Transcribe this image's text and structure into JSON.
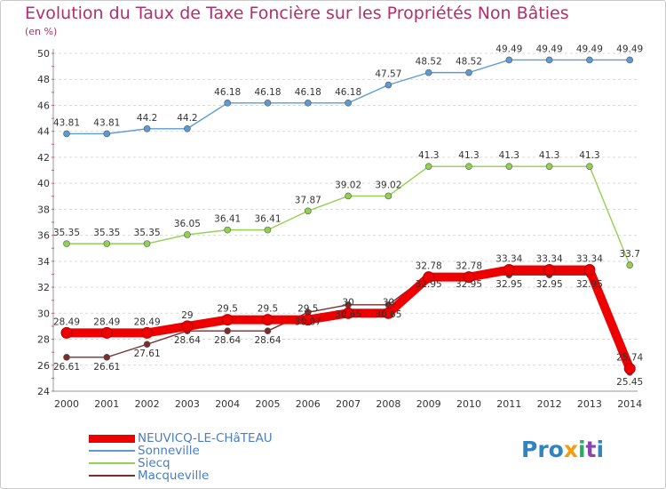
{
  "title": "Evolution du Taux de Taxe Foncière sur les Propriétés Non Bâties",
  "unit": "(en %)",
  "brand": "Proxiti",
  "chart_data": {
    "type": "line",
    "title": "Evolution du Taux de Taxe Foncière sur les Propriétés Non Bâties",
    "ylabel": "(en %)",
    "xlabel": "",
    "x": [
      "2000",
      "2001",
      "2002",
      "2003",
      "2004",
      "2005",
      "2006",
      "2007",
      "2008",
      "2009",
      "2010",
      "2011",
      "2012",
      "2013",
      "2014"
    ],
    "ylim": [
      24,
      50
    ],
    "yticks": [
      "24",
      "26",
      "28",
      "30",
      "32",
      "34",
      "36",
      "38",
      "40",
      "42",
      "44",
      "46",
      "48",
      "50"
    ],
    "grid": "dashed horizontal",
    "legend_placement": "bottom-left",
    "series": [
      {
        "name": "NEUVICQ-LE-CHâTEAU",
        "color": "#ee0000",
        "values": [
          28.49,
          28.49,
          28.49,
          29,
          29.5,
          29.5,
          29.5,
          30,
          30,
          32.78,
          32.78,
          33.34,
          33.34,
          33.34,
          25.74
        ],
        "labels": [
          "28.49",
          "28.49",
          "28.49",
          "29",
          "29.5",
          "29.5",
          "29.5",
          "30",
          "30",
          "32.78",
          "32.78",
          "33.34",
          "33.34",
          "33.34",
          "25.74"
        ]
      },
      {
        "name": "Sonneville",
        "color": "#5b9bd5",
        "values": [
          43.81,
          43.81,
          44.2,
          44.2,
          46.18,
          46.18,
          46.18,
          46.18,
          47.57,
          48.52,
          48.52,
          49.49,
          49.49,
          49.49,
          49.49
        ],
        "labels": [
          "43.81",
          "43.81",
          "44.2",
          "44.2",
          "46.18",
          "46.18",
          "46.18",
          "46.18",
          "47.57",
          "48.52",
          "48.52",
          "49.49",
          "49.49",
          "49.49",
          "49.49"
        ]
      },
      {
        "name": "Siecq",
        "color": "#92d050",
        "values": [
          35.35,
          35.35,
          35.35,
          36.05,
          36.41,
          36.41,
          37.87,
          39.02,
          39.02,
          41.3,
          41.3,
          41.3,
          41.3,
          41.3,
          33.7
        ],
        "labels": [
          "35.35",
          "35.35",
          "35.35",
          "36.05",
          "36.41",
          "36.41",
          "37.87",
          "39.02",
          "39.02",
          "41.3",
          "41.3",
          "41.3",
          "41.3",
          "41.3",
          "33.7"
        ]
      },
      {
        "name": "Macqueville",
        "color": "#7b2d2d",
        "values": [
          26.61,
          26.61,
          27.61,
          28.64,
          28.64,
          28.64,
          30.07,
          30.65,
          30.65,
          32.95,
          32.95,
          32.95,
          32.95,
          32.95,
          25.45
        ],
        "labels": [
          "26.61",
          "26.61",
          "27.61",
          "28.64",
          "28.64",
          "28.64",
          "30.07",
          "30.65",
          "30.65",
          "32.95",
          "32.95",
          "32.95",
          "32.95",
          "32.95",
          "25.45"
        ]
      }
    ]
  }
}
